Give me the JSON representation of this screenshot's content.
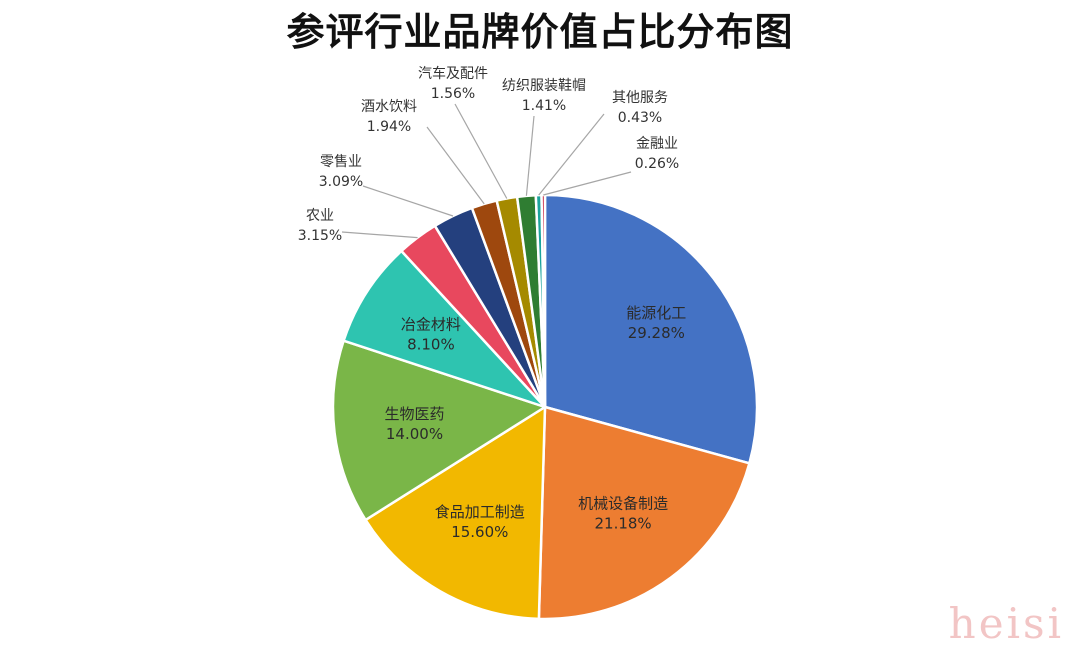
{
  "chart_data": {
    "type": "pie",
    "title": "参评行业品牌价值占比分布图",
    "slices": [
      {
        "label": "能源化工",
        "percent": "29.28%",
        "value": 29.28,
        "color": "#4472c4"
      },
      {
        "label": "机械设备制造",
        "percent": "21.18%",
        "value": 21.18,
        "color": "#ed7d31"
      },
      {
        "label": "食品加工制造",
        "percent": "15.60%",
        "value": 15.6,
        "color": "#f2b800"
      },
      {
        "label": "生物医药",
        "percent": "14.00%",
        "value": 14.0,
        "color": "#7ab648"
      },
      {
        "label": "冶金材料",
        "percent": "8.10%",
        "value": 8.1,
        "color": "#2ec4b0"
      },
      {
        "label": "农业",
        "percent": "3.15%",
        "value": 3.15,
        "color": "#e8485e"
      },
      {
        "label": "零售业",
        "percent": "3.09%",
        "value": 3.09,
        "color": "#24407e"
      },
      {
        "label": "酒水饮料",
        "percent": "1.94%",
        "value": 1.94,
        "color": "#9e480e"
      },
      {
        "label": "汽车及配件",
        "percent": "1.56%",
        "value": 1.56,
        "color": "#a58a00"
      },
      {
        "label": "纺织服装鞋帽",
        "percent": "1.41%",
        "value": 1.41,
        "color": "#2f7d32"
      },
      {
        "label": "其他服务",
        "percent": "0.43%",
        "value": 0.43,
        "color": "#1ba39c"
      },
      {
        "label": "金融业",
        "percent": "0.26%",
        "value": 0.26,
        "color": "#c41e3a"
      }
    ],
    "start": "12 o'clock",
    "direction": "clockwise",
    "legend": "none"
  },
  "watermark": "heisi"
}
